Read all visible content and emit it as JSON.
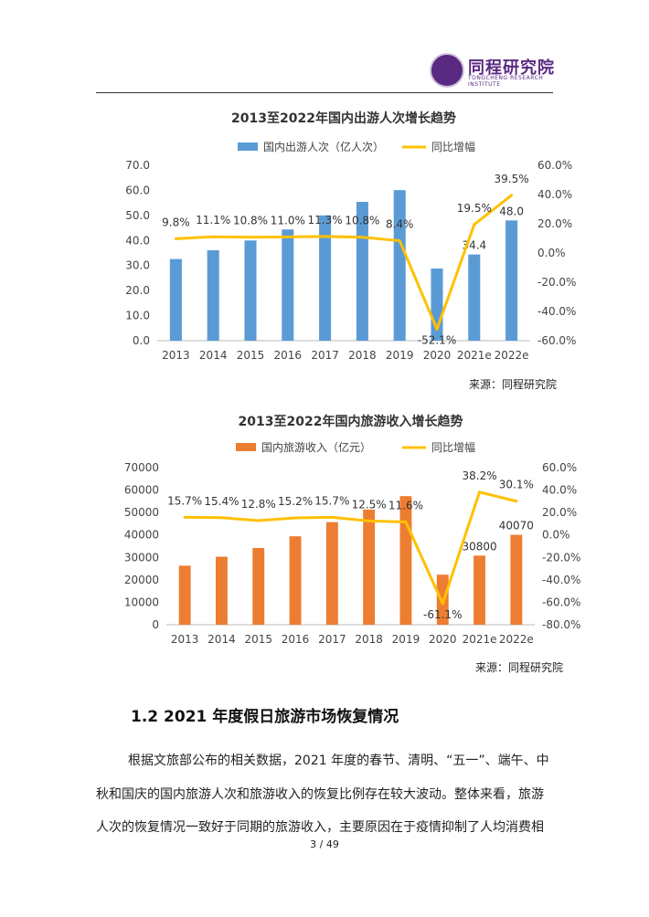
{
  "header": {
    "logo_text": "同程研究院",
    "logo_sub": "TONGCHENG RESEARCH INSTITUTE"
  },
  "chart_data": [
    {
      "type": "bar",
      "title": "2013至2022年国内出游人次增长趋势",
      "categories": [
        "2013",
        "2014",
        "2015",
        "2016",
        "2017",
        "2018",
        "2019",
        "2020",
        "2021e",
        "2022e"
      ],
      "series": [
        {
          "name": "国内出游人次（亿人次）",
          "type": "bar",
          "axis": "left",
          "color": "#5b9bd5",
          "values": [
            32.6,
            36.1,
            40.0,
            44.4,
            50.0,
            55.4,
            60.1,
            28.8,
            34.4,
            48.0
          ],
          "labels": [
            "",
            "",
            "",
            "",
            "",
            "",
            "",
            "",
            "34.4",
            "48.0"
          ]
        },
        {
          "name": "同比增幅",
          "type": "line",
          "axis": "right",
          "color": "#ffc000",
          "values": [
            9.8,
            11.1,
            10.8,
            11.0,
            11.3,
            10.8,
            8.4,
            -52.1,
            19.5,
            39.5
          ],
          "labels": [
            "9.8%",
            "11.1%",
            "10.8%",
            "11.0%",
            "11.3%",
            "10.8%",
            "8.4%",
            "-52.1%",
            "19.5%",
            "39.5%"
          ]
        }
      ],
      "ylim_left": [
        0,
        70
      ],
      "yticks_left": [
        "0.0",
        "10.0",
        "20.0",
        "30.0",
        "40.0",
        "50.0",
        "60.0",
        "70.0"
      ],
      "ylim_right": [
        -60,
        60
      ],
      "yticks_right": [
        "-60.0%",
        "-40.0%",
        "-20.0%",
        "0.0%",
        "20.0%",
        "40.0%",
        "60.0%"
      ],
      "legend": "top",
      "grid": false,
      "source": "来源：同程研究院"
    },
    {
      "type": "bar",
      "title": "2013至2022年国内旅游收入增长趋势",
      "categories": [
        "2013",
        "2014",
        "2015",
        "2016",
        "2017",
        "2018",
        "2019",
        "2020",
        "2021e",
        "2022e"
      ],
      "series": [
        {
          "name": "国内旅游收入（亿元）",
          "type": "bar",
          "axis": "left",
          "color": "#ed7d31",
          "values": [
            26300,
            30300,
            34200,
            39400,
            45700,
            51300,
            57300,
            22300,
            30800,
            40070
          ],
          "labels": [
            "",
            "",
            "",
            "",
            "",
            "",
            "",
            "",
            "30800",
            "40070"
          ]
        },
        {
          "name": "同比增幅",
          "type": "line",
          "axis": "right",
          "color": "#ffc000",
          "values": [
            15.7,
            15.4,
            12.8,
            15.2,
            15.7,
            12.5,
            11.6,
            -61.1,
            38.2,
            30.1
          ],
          "labels": [
            "15.7%",
            "15.4%",
            "12.8%",
            "15.2%",
            "15.7%",
            "12.5%",
            "11.6%",
            "-61.1%",
            "38.2%",
            "30.1%"
          ]
        }
      ],
      "ylim_left": [
        0,
        70000
      ],
      "yticks_left": [
        "0",
        "10000",
        "20000",
        "30000",
        "40000",
        "50000",
        "60000",
        "70000"
      ],
      "ylim_right": [
        -80,
        60
      ],
      "yticks_right": [
        "-80.0%",
        "-60.0%",
        "-40.0%",
        "-20.0%",
        "0.0%",
        "20.0%",
        "40.0%",
        "60.0%"
      ],
      "legend": "top",
      "grid": false,
      "source": "来源：同程研究院"
    }
  ],
  "section": {
    "heading": "1.2 2021 年度假日旅游市场恢复情况",
    "lines": [
      "根据文旅部公布的相关数据，2021 年度的春节、清明、“五一”、端午、中",
      "秋和国庆的国内旅游人次和旅游收入的恢复比例存在较大波动。整体来看，旅游",
      "人次的恢复情况一致好于同期的旅游收入，主要原因在于疫情抑制了人均消费相"
    ]
  },
  "footer": {
    "page": "3 / 49"
  }
}
